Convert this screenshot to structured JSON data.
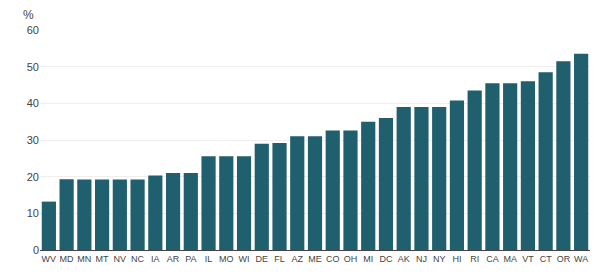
{
  "chart_data": {
    "type": "bar",
    "categories": [
      "WV",
      "MD",
      "MN",
      "MT",
      "NV",
      "NC",
      "IA",
      "AR",
      "PA",
      "IL",
      "MO",
      "WI",
      "DE",
      "FL",
      "AZ",
      "ME",
      "CO",
      "OH",
      "MI",
      "DC",
      "AK",
      "NJ",
      "NY",
      "HI",
      "RI",
      "CA",
      "MA",
      "VT",
      "CT",
      "OR",
      "WA"
    ],
    "values": [
      13.2,
      19.3,
      19.2,
      19.2,
      19.2,
      19.2,
      20.3,
      21.0,
      21.0,
      25.6,
      25.6,
      25.6,
      29.0,
      29.2,
      31.0,
      31.0,
      32.6,
      32.6,
      35.0,
      36.0,
      39.0,
      39.0,
      39.0,
      40.8,
      43.5,
      45.5,
      45.5,
      46.0,
      48.5,
      51.5,
      53.5
    ],
    "color": "#1f5f6e",
    "ylabel": "%",
    "ylim": [
      0,
      60
    ],
    "yticks": [
      0,
      10,
      20,
      30,
      40,
      50,
      60
    ],
    "grid": true
  }
}
